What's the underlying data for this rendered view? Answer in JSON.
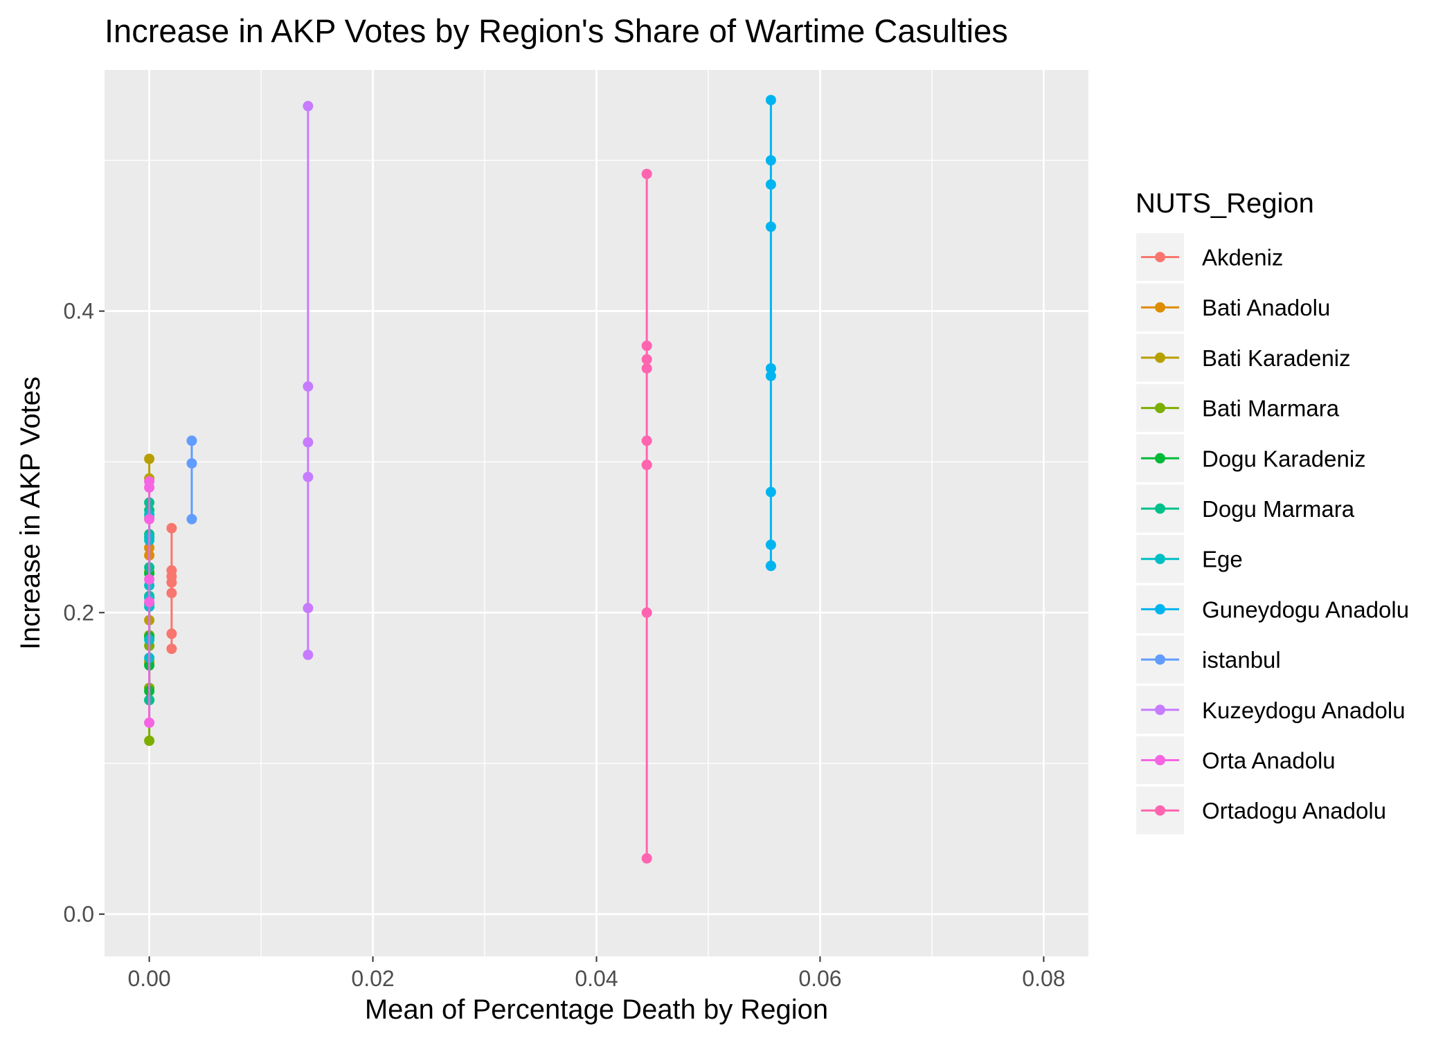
{
  "chart_data": {
    "type": "scatter",
    "title": "Increase in AKP Votes by Region's Share of Wartime Casulties",
    "xlabel": "Mean of Percentage Death by Region",
    "ylabel": "Increase in AKP Votes",
    "xlim": [
      -0.004,
      0.084
    ],
    "ylim": [
      -0.028,
      0.56
    ],
    "x_ticks": [
      0.0,
      0.02,
      0.04,
      0.06,
      0.08
    ],
    "x_tick_labels": [
      "0.00",
      "0.02",
      "0.04",
      "0.06",
      "0.08"
    ],
    "y_ticks": [
      0.0,
      0.2,
      0.4
    ],
    "y_tick_labels": [
      "0.0",
      "0.2",
      "0.4"
    ],
    "grid": true,
    "connected_points": true,
    "legend_title": "NUTS_Region",
    "legend_position": "right",
    "series": [
      {
        "name": "Akdeniz",
        "color": "#F8766D",
        "x": [
          0.002,
          0.002,
          0.002,
          0.002,
          0.002,
          0.002,
          0.002
        ],
        "y": [
          0.256,
          0.228,
          0.224,
          0.22,
          0.213,
          0.186,
          0.176
        ]
      },
      {
        "name": "Bati Anadolu",
        "color": "#DE8C00",
        "x": [
          0,
          0,
          0
        ],
        "y": [
          0.243,
          0.238,
          0.166
        ]
      },
      {
        "name": "Bati Karadeniz",
        "color": "#B79F00",
        "x": [
          0,
          0,
          0,
          0,
          0,
          0,
          0,
          0,
          0,
          0
        ],
        "y": [
          0.302,
          0.289,
          0.263,
          0.25,
          0.227,
          0.21,
          0.195,
          0.183,
          0.168,
          0.15
        ]
      },
      {
        "name": "Bati Marmara",
        "color": "#7CAE00",
        "x": [
          0,
          0,
          0,
          0
        ],
        "y": [
          0.185,
          0.178,
          0.15,
          0.115
        ]
      },
      {
        "name": "Dogu Karadeniz",
        "color": "#00BA38",
        "x": [
          0,
          0,
          0,
          0,
          0,
          0
        ],
        "y": [
          0.226,
          0.206,
          0.184,
          0.165,
          0.148,
          0.142
        ]
      },
      {
        "name": "Dogu Marmara",
        "color": "#00C08B",
        "x": [
          0,
          0,
          0,
          0,
          0,
          0
        ],
        "y": [
          0.273,
          0.268,
          0.252,
          0.23,
          0.211,
          0.142
        ]
      },
      {
        "name": "Ege",
        "color": "#00BFC4",
        "x": [
          0,
          0,
          0,
          0,
          0,
          0,
          0,
          0
        ],
        "y": [
          0.265,
          0.25,
          0.248,
          0.218,
          0.21,
          0.204,
          0.182,
          0.17
        ]
      },
      {
        "name": "Guneydogu Anadolu",
        "color": "#00B4F0",
        "x": [
          0.0556,
          0.0556,
          0.0556,
          0.0556,
          0.0556,
          0.0556,
          0.0556,
          0.0556,
          0.0556,
          0.0556
        ],
        "y": [
          0.54,
          0.5,
          0.484,
          0.456,
          0.362,
          0.357,
          0.28,
          0.245,
          0.231,
          0.231
        ]
      },
      {
        "name": "istanbul",
        "color": "#619CFF",
        "x": [
          0.0038,
          0.0038,
          0.0038
        ],
        "y": [
          0.314,
          0.299,
          0.262
        ]
      },
      {
        "name": "Kuzeydogu Anadolu",
        "color": "#C77CFF",
        "x": [
          0.0142,
          0.0142,
          0.0142,
          0.0142,
          0.0142,
          0.0142
        ],
        "y": [
          0.536,
          0.35,
          0.313,
          0.29,
          0.203,
          0.172
        ]
      },
      {
        "name": "Orta Anadolu",
        "color": "#F564E3",
        "x": [
          0,
          0,
          0,
          0,
          0,
          0
        ],
        "y": [
          0.287,
          0.283,
          0.262,
          0.222,
          0.207,
          0.127
        ]
      },
      {
        "name": "Ortadogu Anadolu",
        "color": "#FF64B0",
        "x": [
          0.0445,
          0.0445,
          0.0445,
          0.0445,
          0.0445,
          0.0445,
          0.0445,
          0.0445,
          0.0445
        ],
        "y": [
          0.491,
          0.377,
          0.368,
          0.362,
          0.314,
          0.298,
          0.298,
          0.2,
          0.037
        ]
      }
    ]
  }
}
